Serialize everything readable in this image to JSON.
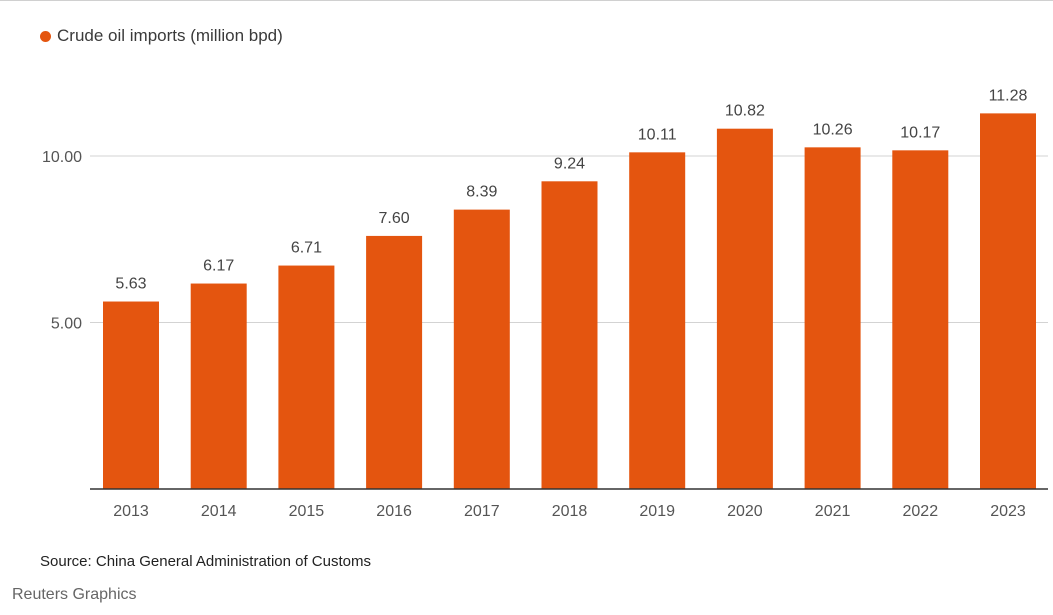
{
  "legend": {
    "label": "Crude oil imports (million bpd)",
    "color": "#e4550f"
  },
  "source": "Source: China General Administration of Customs",
  "credit": "Reuters Graphics",
  "chart_data": {
    "type": "bar",
    "categories": [
      "2013",
      "2014",
      "2015",
      "2016",
      "2017",
      "2018",
      "2019",
      "2020",
      "2021",
      "2022",
      "2023"
    ],
    "series": [
      {
        "name": "Crude oil imports (million bpd)",
        "values": [
          5.63,
          6.17,
          6.71,
          7.6,
          8.39,
          9.24,
          10.11,
          10.82,
          10.26,
          10.17,
          11.28
        ]
      }
    ],
    "data_labels": [
      "5.63",
      "6.17",
      "6.71",
      "7.60",
      "8.39",
      "9.24",
      "10.11",
      "10.82",
      "10.26",
      "10.17",
      "11.28"
    ],
    "yticks": [
      5,
      10
    ],
    "ytick_labels": [
      "5.00",
      "10.00"
    ],
    "ylim": [
      0,
      12
    ],
    "grid": true,
    "legend_position": "top-left",
    "bar_color": "#e4550f"
  }
}
